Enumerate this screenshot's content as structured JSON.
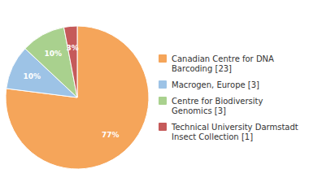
{
  "chart_data": {
    "type": "pie",
    "categories": [
      "Canadian Centre for DNA\nBarcoding [23]",
      "Macrogen, Europe [3]",
      "Centre for Biodiversity\nGenomics [3]",
      "Technical University Darmstadt\nInsect Collection [1]"
    ],
    "values": [
      77,
      10,
      10,
      3
    ],
    "value_labels": [
      "77%",
      "10%",
      "10%",
      "3%"
    ],
    "colors": [
      "#f5a55a",
      "#9dc3e6",
      "#a9d18e",
      "#c55a5a"
    ],
    "data_labels": true,
    "legend": "right"
  }
}
